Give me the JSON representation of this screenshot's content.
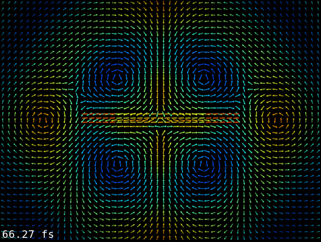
{
  "time_readout": "66.27 fs",
  "colors": {
    "background": "#000000",
    "readout_text": "#ffffff",
    "colormap": [
      "#000080",
      "#0050ff",
      "#00c8ff",
      "#40ffb0",
      "#d0ff30",
      "#ffc000",
      "#ff3000"
    ]
  }
}
